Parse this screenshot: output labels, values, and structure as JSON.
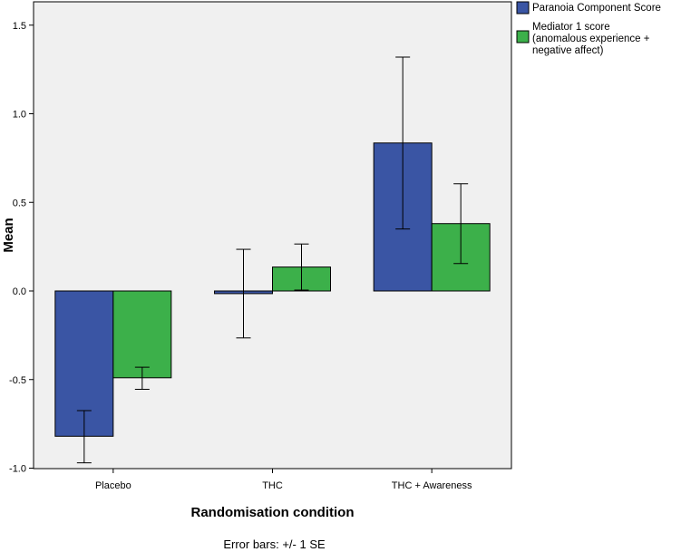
{
  "chart_data": {
    "type": "bar",
    "categories": [
      "Placebo",
      "THC",
      "THC + Awareness"
    ],
    "series": [
      {
        "name": "Paranoia Component Score",
        "color": "#3a55a4",
        "values": [
          -0.82,
          -0.015,
          0.835
        ],
        "error_low": [
          -0.97,
          -0.265,
          0.35
        ],
        "error_high": [
          -0.675,
          0.235,
          1.32
        ]
      },
      {
        "name": "Mediator 1 score (anomalous experience + negative affect)",
        "legend_lines": [
          "Mediator 1 score",
          "(anomalous experience +",
          "negative affect)"
        ],
        "color": "#3cb04a",
        "values": [
          -0.49,
          0.135,
          0.38
        ],
        "error_low": [
          -0.555,
          0.005,
          0.155
        ],
        "error_high": [
          -0.43,
          0.265,
          0.605
        ]
      }
    ],
    "yticks": [
      "1.5",
      "1.0",
      "0.5",
      "0.0",
      "-0.5",
      "-1.0"
    ],
    "ytick_values": [
      1.5,
      1.0,
      0.5,
      0.0,
      -0.5,
      -1.0
    ],
    "ylim": [
      -1.0,
      1.6
    ],
    "xlabel": "Randomisation condition",
    "ylabel": "Mean",
    "footnote": "Error bars: +/- 1 SE",
    "legend_position": "top-right",
    "grid": false,
    "plot_background": "#f0f0f0"
  }
}
